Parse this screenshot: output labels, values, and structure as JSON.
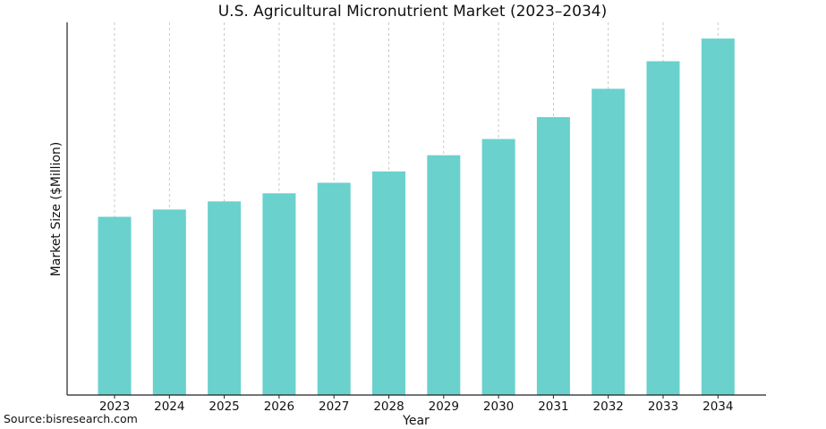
{
  "chart_data": {
    "type": "bar",
    "title": "U.S. Agricultural Micronutrient Market (2023–2034)",
    "xlabel": "Year",
    "ylabel": "Market Size ($Million)",
    "categories": [
      "2023",
      "2024",
      "2025",
      "2026",
      "2027",
      "2028",
      "2029",
      "2030",
      "2031",
      "2032",
      "2033",
      "2034"
    ],
    "values": [
      220,
      229,
      239,
      249,
      262,
      276,
      296,
      316,
      343,
      378,
      412,
      440
    ],
    "ylim": [
      0,
      460
    ],
    "y_ticks_shown": false,
    "grid": "vertical-dashed",
    "bar_color": "#6ad1cd"
  },
  "source": "Source:bisresearch.com"
}
